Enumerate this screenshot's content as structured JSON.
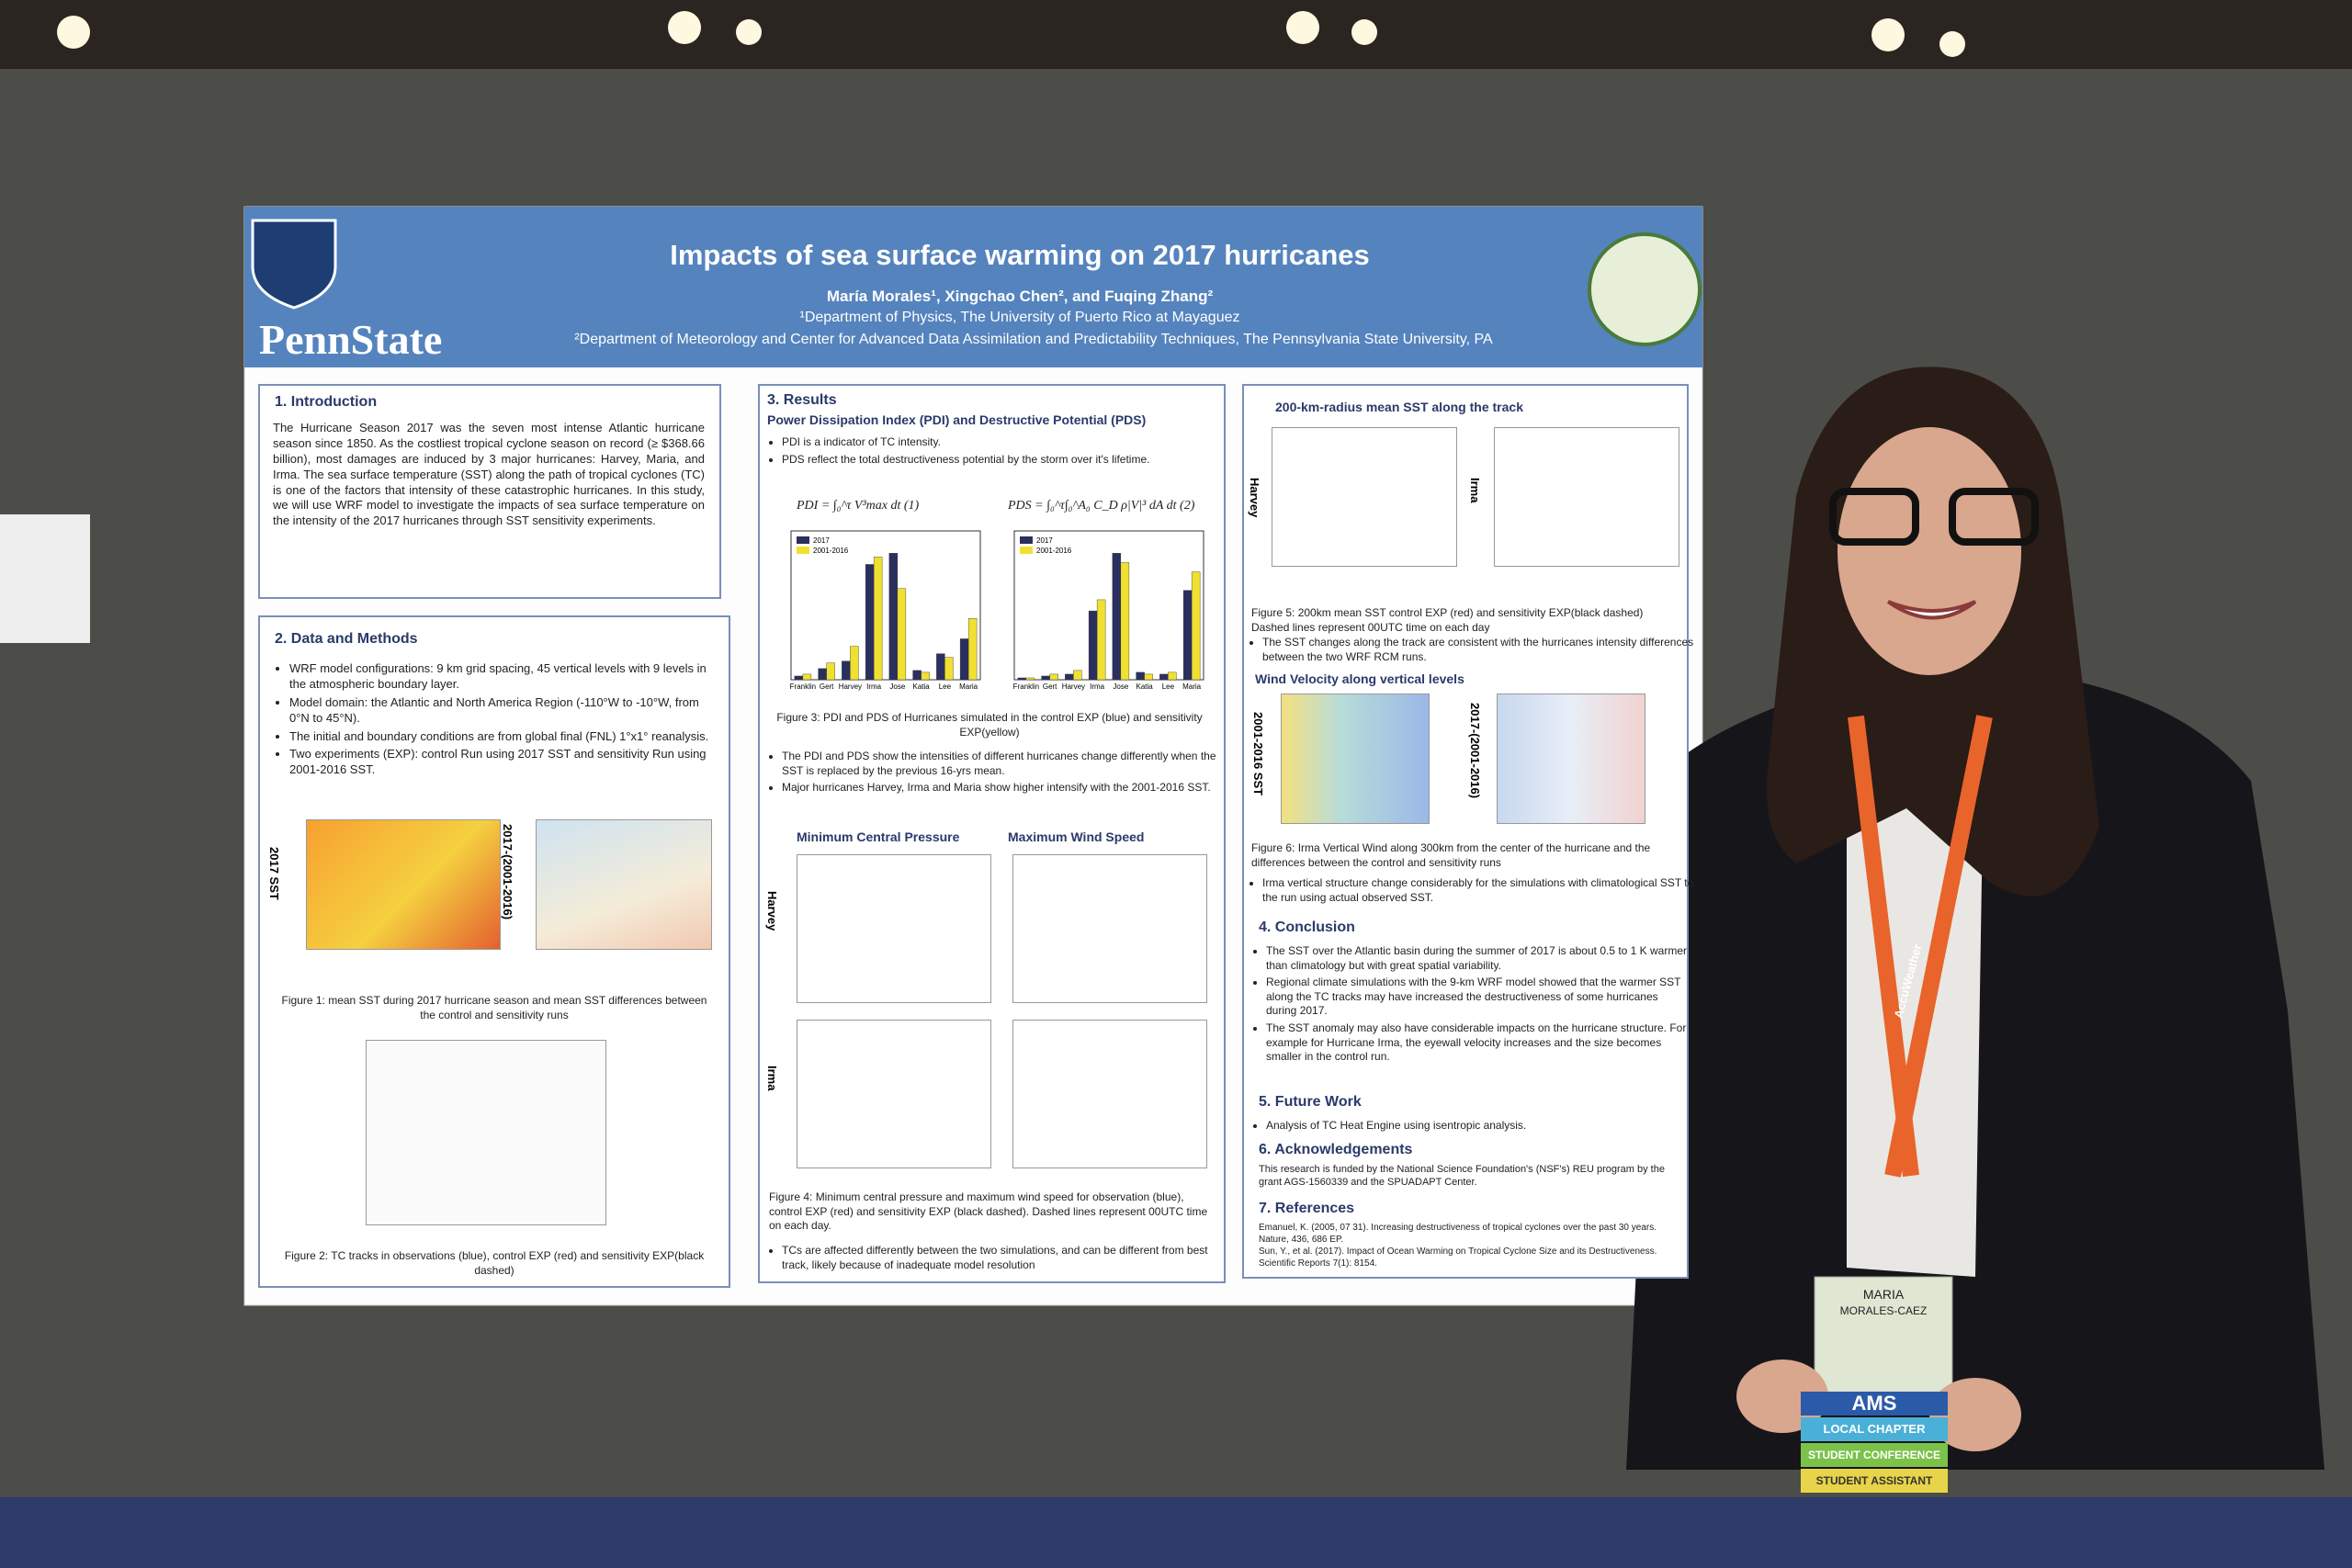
{
  "header": {
    "logo_text": "PennState",
    "title": "Impacts of sea surface warming on 2017 hurricanes",
    "authors": "María Morales¹, Xingchao Chen², and Fuqing Zhang²",
    "affiliation_1": "¹Department of Physics, The University of Puerto Rico at Mayaguez",
    "affiliation_2": "²Department of Meteorology and Center for Advanced Data Assimilation and Predictability Techniques, The Pennsylvania State University, PA"
  },
  "introduction": {
    "heading": "1. Introduction",
    "text": "The Hurricane Season 2017 was the seven most intense Atlantic hurricane season since 1850. As the costliest tropical cyclone season on record (≥ $368.66 billion), most damages are induced by 3 major hurricanes: Harvey, Maria, and Irma. The sea surface temperature (SST) along the path of tropical cyclones (TC) is one of the factors that intensity of these catastrophic hurricanes. In this study, we will use WRF model to investigate the impacts of sea surface temperature on the intensity of the 2017 hurricanes through SST sensitivity experiments."
  },
  "methods": {
    "heading": "2. Data and Methods",
    "bullets": [
      "WRF model configurations: 9 km grid spacing, 45 vertical levels with 9 levels in the atmospheric boundary layer.",
      "Model domain: the Atlantic and North America Region (-110°W to -10°W, from 0°N to 45°N).",
      "The initial and boundary conditions are from global final (FNL) 1°x1° reanalysis.",
      "Two experiments (EXP): control Run using 2017 SST and sensitivity Run using 2001-2016 SST."
    ],
    "fig1_label_a": "2017 SST",
    "fig1_label_b": "2017-(2001-2016)",
    "fig1_caption": "Figure 1: mean SST during 2017 hurricane season and mean SST differences between the control and sensitivity runs",
    "fig2_caption": "Figure 2: TC tracks in observations (blue), control EXP (red) and sensitivity EXP(black dashed)"
  },
  "results": {
    "heading": "3. Results",
    "subheading": "Power Dissipation Index (PDI) and Destructive Potential (PDS)",
    "bullets_a": [
      "PDI is a indicator of TC intensity.",
      "PDS reflect the total destructiveness potential by the storm over it's lifetime."
    ],
    "equation_1": "PDI = ∫₀^τ V³max dt (1)",
    "equation_2": "PDS = ∫₀^τ∫₀^A₀ C_D ρ|V|³ dA dt (2)",
    "fig3_caption": "Figure 3: PDI and PDS of Hurricanes simulated in the control EXP (blue) and sensitivity EXP(yellow)",
    "bullets_b": [
      "The PDI and PDS show the intensities of different hurricanes change differently when the SST is replaced by the previous 16-yrs mean.",
      "Major hurricanes Harvey, Irma and Maria show higher intensify with the 2001-2016 SST."
    ],
    "col_head_1": "Minimum Central Pressure",
    "col_head_2": "Maximum Wind Speed",
    "row_1": "Harvey",
    "row_2": "Irma",
    "fig4_caption": "Figure 4: Minimum central pressure and maximum wind speed for observation (blue), control EXP (red) and sensitivity EXP (black dashed). Dashed lines represent 00UTC time on each day.",
    "bullets_c": [
      "TCs are affected differently between the two simulations, and can be different from best track, likely because of inadequate model resolution"
    ]
  },
  "chart_data": [
    {
      "type": "bar",
      "categories": [
        "Franklin",
        "Gert",
        "Harvey",
        "Irma",
        "Jose",
        "Katia",
        "Lee",
        "Maria"
      ],
      "series": [
        {
          "name": "2017",
          "color": "#2b2f5e",
          "values": [
            0.2,
            0.6,
            1.0,
            6.2,
            6.8,
            0.5,
            1.4,
            2.2
          ]
        },
        {
          "name": "2001-2016",
          "color": "#f0e030",
          "values": [
            0.3,
            0.9,
            1.8,
            6.6,
            4.9,
            0.4,
            1.2,
            3.3
          ]
        }
      ],
      "ylim": [
        0,
        8
      ]
    },
    {
      "type": "bar",
      "categories": [
        "Franklin",
        "Gert",
        "Harvey",
        "Irma",
        "Jose",
        "Katia",
        "Lee",
        "Maria"
      ],
      "series": [
        {
          "name": "2017",
          "color": "#2b2f5e",
          "values": [
            0.1,
            0.2,
            0.3,
            3.7,
            6.8,
            0.4,
            0.3,
            4.8
          ]
        },
        {
          "name": "2001-2016",
          "color": "#f0e030",
          "values": [
            0.1,
            0.3,
            0.5,
            4.3,
            6.3,
            0.3,
            0.4,
            5.8
          ]
        }
      ],
      "ylim": [
        0,
        8
      ]
    }
  ],
  "column3": {
    "sst_heading": "200-km-radius mean SST along the track",
    "row_1": "Harvey",
    "row_2": "Irma",
    "fig5_caption": "Figure 5: 200km mean SST control EXP (red) and sensitivity EXP(black dashed) Dashed lines represent 00UTC time on each day",
    "bullet_a": "The SST changes along the track are consistent with the hurricanes intensity differences between the two WRF RCM runs.",
    "wind_heading": "Wind Velocity along vertical levels",
    "fig6_label_a": "2001-2016 SST",
    "fig6_label_b": "2017-(2001-2016)",
    "fig6_caption": "Figure 6: Irma Vertical Wind along 300km from the center of the hurricane and the differences between the control and sensitivity runs",
    "bullet_b": "Irma vertical structure change considerably for the simulations with climatological SST to the run using actual observed SST.",
    "conclusion_heading": "4. Conclusion",
    "conclusion": [
      "The SST over the Atlantic basin during the summer of 2017 is about 0.5 to 1 K warmer than climatology but with great spatial variability.",
      "Regional climate simulations with the 9-km WRF model showed that the warmer SST along the TC tracks may have increased the destructiveness of some hurricanes during 2017.",
      "The SST anomaly may also have considerable impacts on the hurricane structure. For example for Hurricane Irma, the eyewall velocity increases and the size becomes smaller in the control run."
    ],
    "future_heading": "5. Future Work",
    "future": "Analysis of TC Heat Engine using isentropic analysis.",
    "ack_heading": "6. Acknowledgements",
    "ack": "This research is funded by the National Science Foundation's (NSF's) REU program by the grant AGS-1560339 and the SPUADAPT Center.",
    "ref_heading": "7. References",
    "refs": [
      "Emanuel, K. (2005, 07 31). Increasing destructiveness of tropical cyclones over the past 30 years. Nature, 436, 686 EP.",
      "Sun, Y., et al. (2017). Impact of Ocean Warming on Tropical Cyclone Size and its Destructiveness. Scientific Reports 7(1): 8154."
    ]
  },
  "badge": {
    "lanyard": "AccuWeather",
    "first_name": "MARIA",
    "last_name": "MORALES-CAEZ",
    "ribbon_1": "AMS",
    "ribbon_2": "LOCAL CHAPTER",
    "ribbon_3": "STUDENT CONFERENCE",
    "ribbon_4": "STUDENT ASSISTANT"
  }
}
